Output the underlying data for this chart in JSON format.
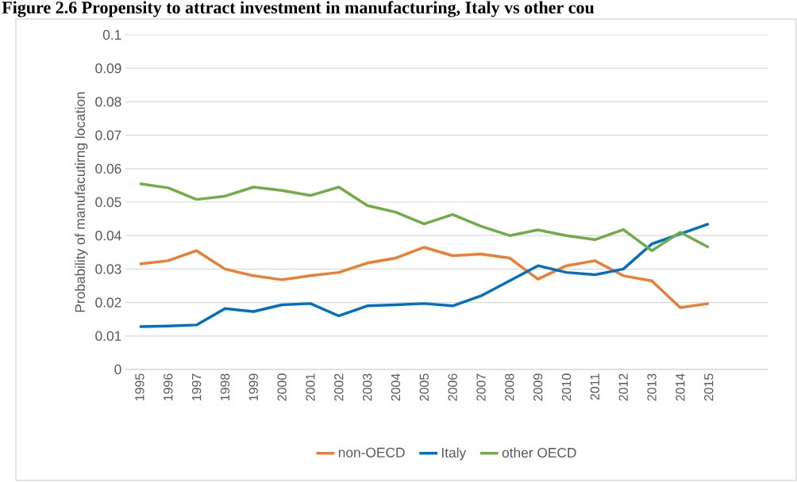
{
  "chart_data": {
    "type": "line",
    "title": "Figure 2.6 Propensity to attract investment in manufacturing, Italy vs other cou",
    "ylabel": "Probability of manufacutirng location",
    "categories": [
      "1995",
      "1996",
      "1997",
      "1998",
      "1999",
      "2000",
      "2001",
      "2002",
      "2003",
      "2004",
      "2005",
      "2006",
      "2007",
      "2008",
      "2009",
      "2010",
      "2011",
      "2012",
      "2013",
      "2014",
      "2015"
    ],
    "series": [
      {
        "name": "non-OECD",
        "color": "#ed7d31",
        "values": [
          0.0315,
          0.0325,
          0.0355,
          0.03,
          0.028,
          0.0268,
          0.028,
          0.029,
          0.0318,
          0.0333,
          0.0365,
          0.034,
          0.0345,
          0.0333,
          0.027,
          0.031,
          0.0325,
          0.028,
          0.0265,
          0.0185,
          0.0197
        ]
      },
      {
        "name": "Italy",
        "color": "#0070c0",
        "values": [
          0.0128,
          0.013,
          0.0133,
          0.0182,
          0.0173,
          0.0193,
          0.0197,
          0.016,
          0.019,
          0.0193,
          0.0197,
          0.019,
          0.022,
          0.0265,
          0.031,
          0.029,
          0.0283,
          0.03,
          0.0375,
          0.0405,
          0.0435
        ]
      },
      {
        "name": "other OECD",
        "color": "#70ad47",
        "values": [
          0.0555,
          0.0543,
          0.0508,
          0.0518,
          0.0545,
          0.0535,
          0.052,
          0.0545,
          0.049,
          0.047,
          0.0435,
          0.0463,
          0.0428,
          0.04,
          0.0417,
          0.04,
          0.0388,
          0.0418,
          0.0355,
          0.041,
          0.0365
        ]
      }
    ],
    "ylim": [
      0,
      0.1
    ],
    "yticks": [
      0,
      0.01,
      0.02,
      0.03,
      0.04,
      0.05,
      0.06,
      0.07,
      0.08,
      0.09,
      0.1
    ],
    "grid": "y",
    "legend": "bottom",
    "marker": "none",
    "line_style": "solid"
  }
}
